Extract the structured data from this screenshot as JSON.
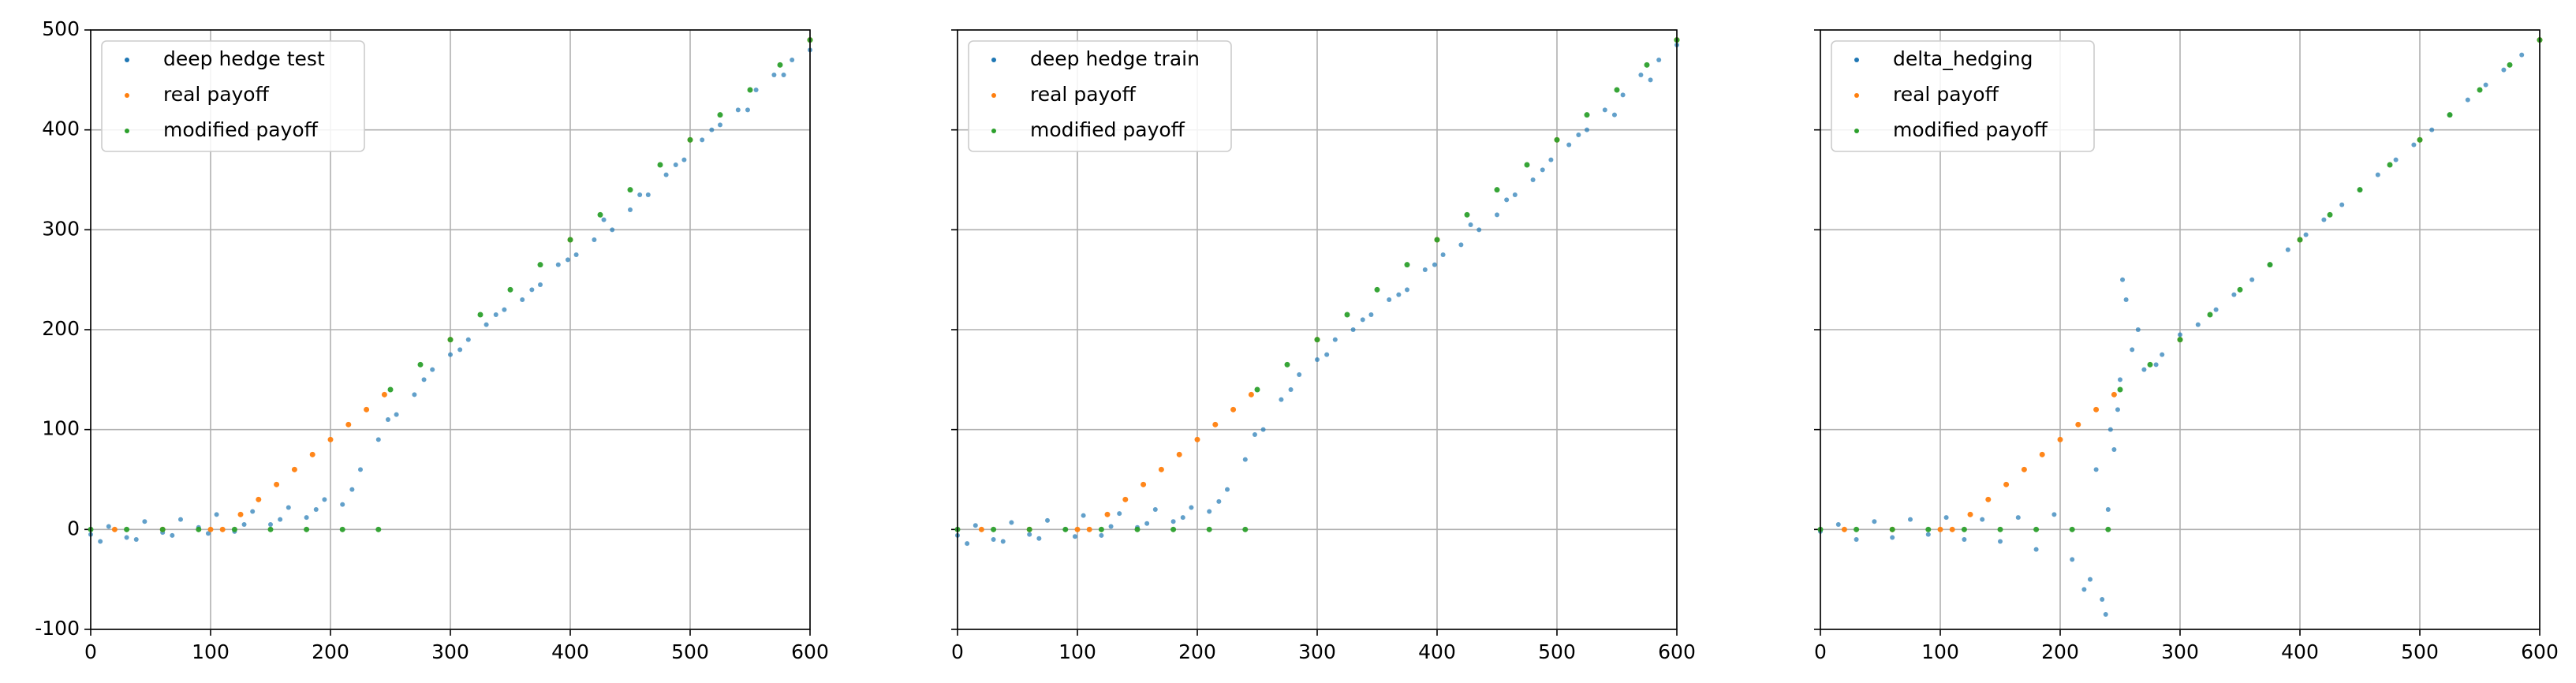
{
  "chart_data": [
    {
      "type": "scatter",
      "xlim": [
        0,
        600
      ],
      "ylim": [
        -100,
        500
      ],
      "xticks": [
        0,
        100,
        200,
        300,
        400,
        500,
        600
      ],
      "yticks": [
        -100,
        0,
        100,
        200,
        300,
        400,
        500
      ],
      "grid": true,
      "legend": "upper left",
      "sharey": false,
      "series": [
        {
          "name": "deep hedge test",
          "color": "#1f77b4",
          "x": [
            0,
            15,
            30,
            45,
            60,
            75,
            90,
            105,
            120,
            135,
            150,
            165,
            180,
            195,
            210,
            225,
            240,
            255,
            270,
            285,
            300,
            315,
            330,
            345,
            360,
            375,
            390,
            405,
            420,
            435,
            450,
            465,
            480,
            495,
            510,
            525,
            540,
            555,
            570,
            585,
            600,
            8,
            38,
            68,
            98,
            128,
            158,
            188,
            218,
            248,
            278,
            308,
            338,
            368,
            398,
            428,
            458,
            488,
            518,
            548,
            578
          ],
          "values": [
            -5,
            3,
            -8,
            8,
            -3,
            10,
            2,
            15,
            -2,
            18,
            5,
            22,
            12,
            30,
            25,
            60,
            90,
            115,
            135,
            160,
            175,
            190,
            205,
            220,
            230,
            245,
            265,
            275,
            290,
            300,
            320,
            335,
            355,
            370,
            390,
            405,
            420,
            440,
            455,
            470,
            480,
            -12,
            -10,
            -6,
            -4,
            5,
            10,
            20,
            40,
            110,
            150,
            180,
            215,
            240,
            270,
            310,
            335,
            365,
            400,
            420,
            455
          ]
        },
        {
          "name": "real payoff",
          "color": "#ff7f0e",
          "x": [
            20,
            60,
            100,
            110,
            125,
            140,
            155,
            170,
            185,
            200,
            215,
            230,
            245,
            300,
            400,
            500,
            600
          ],
          "values": [
            0,
            0,
            0,
            0,
            15,
            30,
            45,
            60,
            75,
            90,
            105,
            120,
            135,
            190,
            290,
            390,
            490
          ]
        },
        {
          "name": "modified payoff",
          "color": "#2ca02c",
          "x": [
            0,
            30,
            60,
            90,
            120,
            150,
            180,
            210,
            240,
            250,
            275,
            300,
            325,
            350,
            375,
            400,
            425,
            450,
            475,
            500,
            525,
            550,
            575,
            600
          ],
          "values": [
            0,
            0,
            0,
            0,
            0,
            0,
            0,
            0,
            0,
            140,
            165,
            190,
            215,
            240,
            265,
            290,
            315,
            340,
            365,
            390,
            415,
            440,
            465,
            490
          ]
        }
      ]
    },
    {
      "type": "scatter",
      "xlim": [
        0,
        600
      ],
      "ylim": [
        -100,
        500
      ],
      "xticks": [
        0,
        100,
        200,
        300,
        400,
        500,
        600
      ],
      "yticks": [
        -100,
        0,
        100,
        200,
        300,
        400,
        500
      ],
      "grid": true,
      "legend": "upper left",
      "sharey": true,
      "series": [
        {
          "name": "deep hedge train",
          "color": "#1f77b4",
          "x": [
            0,
            15,
            30,
            45,
            60,
            75,
            90,
            105,
            120,
            135,
            150,
            165,
            180,
            195,
            210,
            225,
            240,
            255,
            270,
            285,
            300,
            315,
            330,
            345,
            360,
            375,
            390,
            405,
            420,
            435,
            450,
            465,
            480,
            495,
            510,
            525,
            540,
            555,
            570,
            585,
            600,
            8,
            38,
            68,
            98,
            128,
            158,
            188,
            218,
            248,
            278,
            308,
            338,
            368,
            398,
            428,
            458,
            488,
            518,
            548,
            578
          ],
          "values": [
            -6,
            4,
            -10,
            7,
            -5,
            9,
            0,
            14,
            -6,
            16,
            2,
            20,
            8,
            22,
            18,
            40,
            70,
            100,
            130,
            155,
            170,
            190,
            200,
            215,
            230,
            240,
            260,
            275,
            285,
            300,
            315,
            335,
            350,
            370,
            385,
            400,
            420,
            435,
            455,
            470,
            485,
            -14,
            -12,
            -9,
            -7,
            3,
            6,
            12,
            28,
            95,
            140,
            175,
            210,
            235,
            265,
            305,
            330,
            360,
            395,
            415,
            450
          ]
        },
        {
          "name": "real payoff",
          "color": "#ff7f0e",
          "x": [
            20,
            60,
            100,
            110,
            125,
            140,
            155,
            170,
            185,
            200,
            215,
            230,
            245,
            300,
            400,
            500,
            600
          ],
          "values": [
            0,
            0,
            0,
            0,
            15,
            30,
            45,
            60,
            75,
            90,
            105,
            120,
            135,
            190,
            290,
            390,
            490
          ]
        },
        {
          "name": "modified payoff",
          "color": "#2ca02c",
          "x": [
            0,
            30,
            60,
            90,
            120,
            150,
            180,
            210,
            240,
            250,
            275,
            300,
            325,
            350,
            375,
            400,
            425,
            450,
            475,
            500,
            525,
            550,
            575,
            600
          ],
          "values": [
            0,
            0,
            0,
            0,
            0,
            0,
            0,
            0,
            0,
            140,
            165,
            190,
            215,
            240,
            265,
            290,
            315,
            340,
            365,
            390,
            415,
            440,
            465,
            490
          ]
        }
      ]
    },
    {
      "type": "scatter",
      "xlim": [
        0,
        600
      ],
      "ylim": [
        -100,
        500
      ],
      "xticks": [
        0,
        100,
        200,
        300,
        400,
        500,
        600
      ],
      "yticks": [
        -100,
        0,
        100,
        200,
        300,
        400,
        500
      ],
      "grid": true,
      "legend": "upper left",
      "sharey": true,
      "series": [
        {
          "name": "delta_hedging",
          "color": "#1f77b4",
          "x": [
            0,
            15,
            30,
            45,
            60,
            75,
            90,
            105,
            120,
            135,
            150,
            165,
            180,
            195,
            210,
            225,
            235,
            240,
            245,
            250,
            255,
            260,
            270,
            285,
            300,
            315,
            330,
            345,
            360,
            375,
            390,
            405,
            420,
            435,
            450,
            465,
            480,
            495,
            510,
            525,
            540,
            555,
            570,
            585,
            600,
            220,
            230,
            238,
            242,
            248,
            252,
            265,
            280
          ],
          "values": [
            -2,
            5,
            -10,
            8,
            -8,
            10,
            -5,
            12,
            -10,
            10,
            -12,
            12,
            -20,
            15,
            -30,
            -50,
            -70,
            20,
            80,
            150,
            230,
            180,
            160,
            175,
            195,
            205,
            220,
            235,
            250,
            265,
            280,
            295,
            310,
            325,
            340,
            355,
            370,
            385,
            400,
            415,
            430,
            445,
            460,
            475,
            490,
            -60,
            60,
            -85,
            100,
            120,
            250,
            200,
            165
          ]
        },
        {
          "name": "real payoff",
          "color": "#ff7f0e",
          "x": [
            20,
            60,
            100,
            110,
            125,
            140,
            155,
            170,
            185,
            200,
            215,
            230,
            245,
            300,
            400,
            500,
            600
          ],
          "values": [
            0,
            0,
            0,
            0,
            15,
            30,
            45,
            60,
            75,
            90,
            105,
            120,
            135,
            190,
            290,
            390,
            490
          ]
        },
        {
          "name": "modified payoff",
          "color": "#2ca02c",
          "x": [
            0,
            30,
            60,
            90,
            120,
            150,
            180,
            210,
            240,
            250,
            275,
            300,
            325,
            350,
            375,
            400,
            425,
            450,
            475,
            500,
            525,
            550,
            575,
            600
          ],
          "values": [
            0,
            0,
            0,
            0,
            0,
            0,
            0,
            0,
            0,
            140,
            165,
            190,
            215,
            240,
            265,
            290,
            315,
            340,
            365,
            390,
            415,
            440,
            465,
            490
          ]
        }
      ]
    }
  ]
}
